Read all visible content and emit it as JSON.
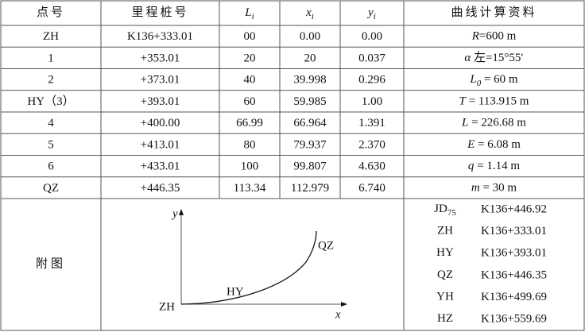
{
  "table": {
    "header": [
      {
        "text": "点号"
      },
      {
        "text": "里程桩号"
      },
      {
        "var": "L",
        "sub": "i"
      },
      {
        "var": "x",
        "sub": "i"
      },
      {
        "var": "y",
        "sub": "i"
      },
      {
        "text": "曲线计算资料"
      }
    ],
    "rows": [
      [
        "ZH",
        "K136+333.01",
        "00",
        "0.00",
        "0.00"
      ],
      [
        "1",
        "+353.01",
        "20",
        "20",
        "0.037"
      ],
      [
        "2",
        "+373.01",
        "40",
        "39.998",
        "0.296"
      ],
      [
        "HY（3）",
        "+393.01",
        "60",
        "59.985",
        "1.00"
      ],
      [
        "4",
        "+400.00",
        "66.99",
        "66.964",
        "1.391"
      ],
      [
        "5",
        "+413.01",
        "80",
        "79.937",
        "2.370"
      ],
      [
        "6",
        "+433.01",
        "100",
        "99.807",
        "4.630"
      ],
      [
        "QZ",
        "+446.35",
        "113.34",
        "112.979",
        "6.740"
      ]
    ],
    "curve": [
      {
        "var": "R",
        "text": "=600 m"
      },
      {
        "var": "α",
        "text": " 左=15°55′"
      },
      {
        "var": "L",
        "sub": "0",
        "text": " = 60 m"
      },
      {
        "var": "T",
        "text": " = 113.915 m"
      },
      {
        "var": "L",
        "text": " = 226.68 m"
      },
      {
        "var": "E",
        "text": " = 6.08 m"
      },
      {
        "var": "q",
        "text": " = 1.14 m"
      },
      {
        "var": "m",
        "text": " = 30 m"
      }
    ],
    "points": [
      {
        "name": "JD",
        "sub": "75",
        "value": "K136+446.92"
      },
      {
        "name": "ZH",
        "value": "K136+333.01"
      },
      {
        "name": "HY",
        "value": "K136+393.01"
      },
      {
        "name": "QZ",
        "value": "K136+446.35"
      },
      {
        "name": "YH",
        "value": "K136+499.69"
      },
      {
        "name": "HZ",
        "value": "K136+559.69"
      }
    ],
    "figure_label": "附图",
    "figure": {
      "y_axis": "y",
      "x_axis": "x",
      "start": "ZH",
      "mid": "HY",
      "end": "QZ"
    }
  }
}
